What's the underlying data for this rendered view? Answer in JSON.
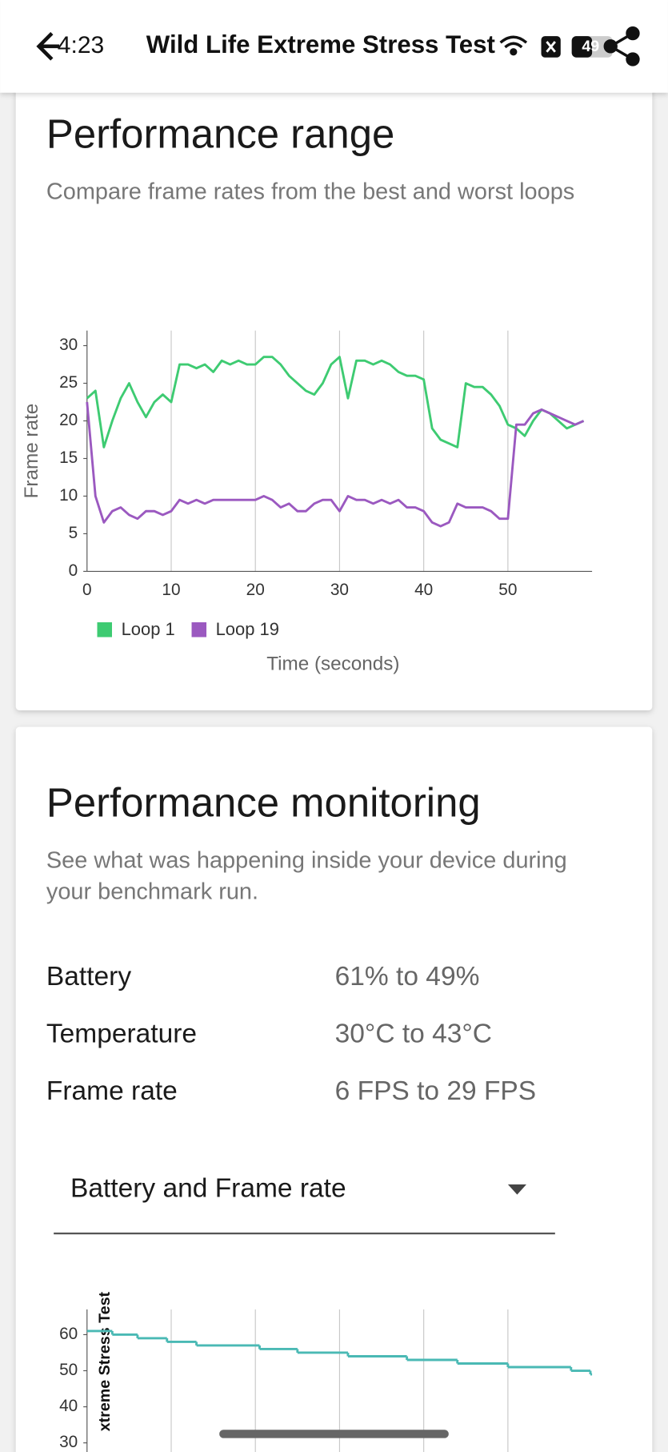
{
  "header": {
    "time": "4:23",
    "title": "Wild Life Extreme Stress Test",
    "battery": "49"
  },
  "range_card": {
    "title": "Performance range",
    "subtitle": "Compare frame rates from the best and worst loops"
  },
  "monitoring_card": {
    "title": "Performance monitoring",
    "subtitle": "See what was happening inside your device during your benchmark run.",
    "rows": [
      [
        "Battery",
        "61% to 49%"
      ],
      [
        "Temperature",
        "30°C to 43°C"
      ],
      [
        "Frame rate",
        "6 FPS to 29 FPS"
      ]
    ],
    "dropdown": "Battery and Frame rate"
  },
  "chart_data": [
    {
      "type": "line",
      "y_label": "Frame rate",
      "x_label": "Time (seconds)",
      "x": [
        0,
        1,
        2,
        3,
        4,
        5,
        6,
        7,
        8,
        9,
        10,
        11,
        12,
        13,
        14,
        15,
        16,
        17,
        18,
        19,
        20,
        21,
        22,
        23,
        24,
        25,
        26,
        27,
        28,
        29,
        30,
        31,
        32,
        33,
        34,
        35,
        36,
        37,
        38,
        39,
        40,
        41,
        42,
        43,
        44,
        45,
        46,
        47,
        48,
        49,
        50,
        51,
        52,
        53,
        54,
        55,
        56,
        57,
        58,
        59
      ],
      "series": [
        {
          "name": "Loop 1",
          "color": "#3ecb72",
          "values": [
            23,
            24,
            16.5,
            20,
            23,
            25,
            22.5,
            20.5,
            22.5,
            23.5,
            22.5,
            27.5,
            27.5,
            27,
            27.5,
            26.5,
            28,
            27.5,
            28,
            27.5,
            27.5,
            28.5,
            28.5,
            27.5,
            26,
            25,
            24,
            23.5,
            25,
            27.5,
            28.5,
            23,
            28,
            28,
            27.5,
            28,
            27.5,
            26.5,
            26,
            26,
            25.5,
            19,
            17.5,
            17,
            16.5,
            25,
            24.5,
            24.5,
            23.5,
            22,
            19.5,
            19,
            18,
            20,
            21.5,
            21,
            20,
            19,
            19.5,
            20
          ]
        },
        {
          "name": "Loop 19",
          "color": "#9b59c0",
          "values": [
            22.5,
            10,
            6.5,
            8,
            8.5,
            7.5,
            7,
            8,
            8,
            7.5,
            8,
            9.5,
            9,
            9.5,
            9,
            9.5,
            9.5,
            9.5,
            9.5,
            9.5,
            9.5,
            10,
            9.5,
            8.5,
            9,
            8,
            8,
            9,
            9.5,
            9.5,
            8,
            10,
            9.5,
            9.5,
            9,
            9.5,
            9,
            9.5,
            8.5,
            8.5,
            8,
            6.5,
            6,
            6.5,
            9,
            8.5,
            8.5,
            8.5,
            8,
            7,
            7,
            19.5,
            19.5,
            21,
            21.5,
            21,
            20.5,
            20,
            19.5,
            20
          ]
        }
      ],
      "xlim": [
        0,
        60
      ],
      "xticks": [
        0,
        10,
        20,
        30,
        40,
        50
      ],
      "ylim": [
        0,
        32
      ],
      "yticks": [
        0,
        5,
        10,
        15,
        20,
        25,
        30
      ],
      "grid": true,
      "legend": "bottom"
    },
    {
      "type": "step",
      "y_label": "xtreme Stress Test",
      "x": [
        0,
        3,
        6,
        9.5,
        13,
        20.5,
        25,
        31,
        38,
        44,
        50,
        57.5,
        59.8
      ],
      "series": [
        {
          "name": "Battery",
          "color": "#4ab9b4",
          "values": [
            61,
            60,
            59,
            58,
            57,
            56,
            55,
            54,
            53,
            52,
            51,
            50,
            49
          ]
        }
      ],
      "xlim": [
        0,
        60
      ],
      "xticks": [
        0,
        10,
        20,
        30,
        40,
        50
      ],
      "ylim": [
        0,
        67
      ],
      "yticks": [
        30,
        40,
        50,
        60
      ],
      "grid": true
    }
  ]
}
